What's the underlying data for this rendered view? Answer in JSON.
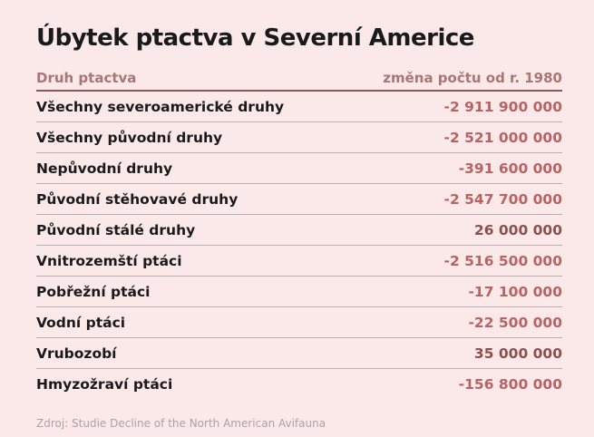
{
  "title": "Úbytek ptactva v Severní Americe",
  "header": {
    "col_label": "Druh ptactva",
    "col_value": "změna počtu od r. 1980"
  },
  "source": "Zdroj: Studie Decline of the North American Avifauna",
  "colors": {
    "negative": "#b56464",
    "positive": "#8a4f4f",
    "header": "#a87676",
    "background": "#fbe9e9"
  },
  "chart_data": {
    "type": "table",
    "title": "Úbytek ptactva v Severní Americe",
    "columns": [
      "Druh ptactva",
      "změna počtu od r. 1980"
    ],
    "rows": [
      {
        "label": "Všechny severoamerické druhy",
        "value": -2911900000,
        "display": "-2 911 900 000"
      },
      {
        "label": "Všechny původní druhy",
        "value": -2521000000,
        "display": "-2 521 000 000"
      },
      {
        "label": "Nepůvodní druhy",
        "value": -391600000,
        "display": "-391 600 000"
      },
      {
        "label": "Původní stěhovavé druhy",
        "value": -2547700000,
        "display": "-2 547 700 000"
      },
      {
        "label": "Původní stálé druhy",
        "value": 26000000,
        "display": "26 000 000"
      },
      {
        "label": "Vnitrozemští ptáci",
        "value": -2516500000,
        "display": "-2 516 500 000"
      },
      {
        "label": "Pobřežní ptáci",
        "value": -17100000,
        "display": "-17 100 000"
      },
      {
        "label": "Vodní ptáci",
        "value": -22500000,
        "display": "-22 500 000"
      },
      {
        "label": "Vrubozobí",
        "value": 35000000,
        "display": "35 000 000"
      },
      {
        "label": "Hmyzožraví ptáci",
        "value": -156800000,
        "display": "-156 800 000"
      }
    ]
  }
}
